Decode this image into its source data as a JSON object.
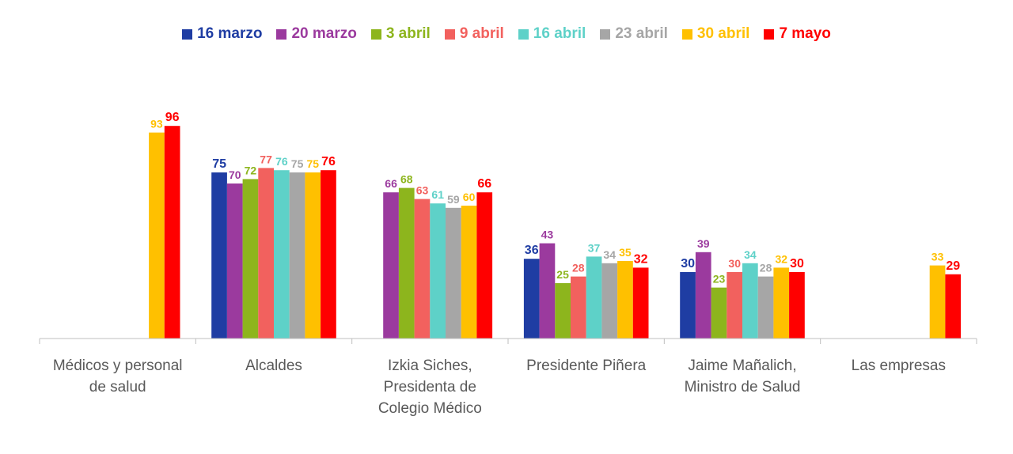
{
  "chart_data": {
    "type": "bar",
    "title": "",
    "xlabel": "",
    "ylabel": "",
    "ylim": [
      0,
      100
    ],
    "grid": false,
    "legend_position": "top",
    "categories": [
      [
        "Médicos y personal",
        "de salud"
      ],
      [
        "Alcaldes"
      ],
      [
        "Izkia Siches,",
        "Presidenta de",
        "Colegio Médico"
      ],
      [
        "Presidente Piñera"
      ],
      [
        "Jaime Mañalich,",
        "Ministro de Salud"
      ],
      [
        "Las empresas"
      ]
    ],
    "series": [
      {
        "name": "16 marzo",
        "color": "#1F3DA3",
        "values": [
          null,
          75,
          null,
          36,
          30,
          null
        ]
      },
      {
        "name": "20 marzo",
        "color": "#9B3A9E",
        "values": [
          null,
          70,
          66,
          43,
          39,
          null
        ]
      },
      {
        "name": "3 abril",
        "color": "#8DB51D",
        "values": [
          null,
          72,
          68,
          25,
          23,
          null
        ]
      },
      {
        "name": "9 abril",
        "color": "#F2615E",
        "values": [
          null,
          77,
          63,
          28,
          30,
          null
        ]
      },
      {
        "name": "16 abril",
        "color": "#5ED1C8",
        "values": [
          null,
          76,
          61,
          37,
          34,
          null
        ]
      },
      {
        "name": "23 abril",
        "color": "#A6A6A6",
        "values": [
          null,
          75,
          59,
          34,
          28,
          null
        ]
      },
      {
        "name": "30 abril",
        "color": "#FFC000",
        "values": [
          93,
          75,
          60,
          35,
          32,
          33
        ]
      },
      {
        "name": "7 mayo",
        "color": "#FF0000",
        "values": [
          96,
          76,
          66,
          32,
          30,
          29
        ]
      }
    ]
  }
}
